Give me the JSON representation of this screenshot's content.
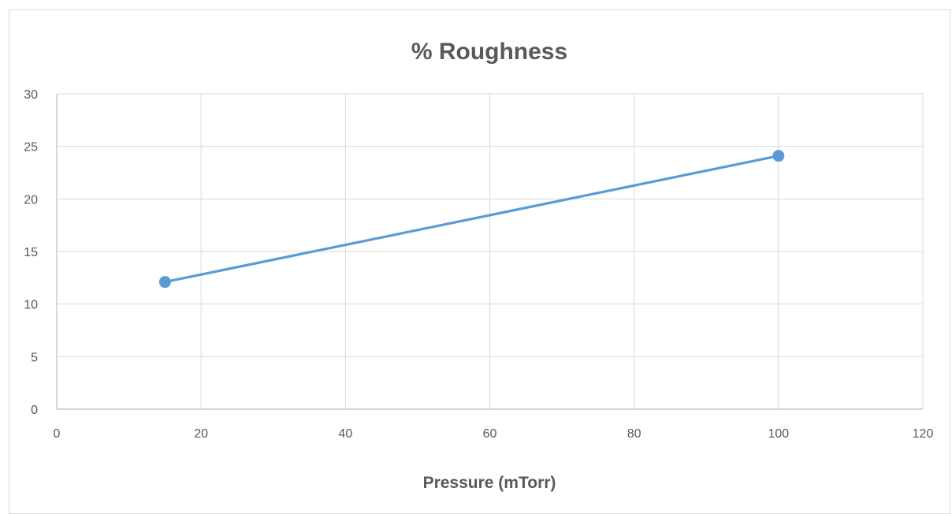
{
  "chart_data": {
    "type": "scatter",
    "title": "% Roughness",
    "xlabel": "Pressure (mTorr)",
    "ylabel": "",
    "xlim": [
      0,
      120
    ],
    "ylim": [
      0,
      30
    ],
    "xticks": [
      0,
      20,
      40,
      60,
      80,
      100,
      120
    ],
    "yticks": [
      0,
      5,
      10,
      15,
      20,
      25,
      30
    ],
    "grid": true,
    "legend": "none",
    "series": [
      {
        "x": [
          15,
          100
        ],
        "y": [
          12.1,
          24.1
        ],
        "color": "#5b9bd5",
        "mode": "lines+markers"
      }
    ]
  },
  "colors": {
    "grid": "#d9d9d9",
    "axis": "#bfbfbf",
    "text": "#595959",
    "series": "#5b9bd5"
  }
}
